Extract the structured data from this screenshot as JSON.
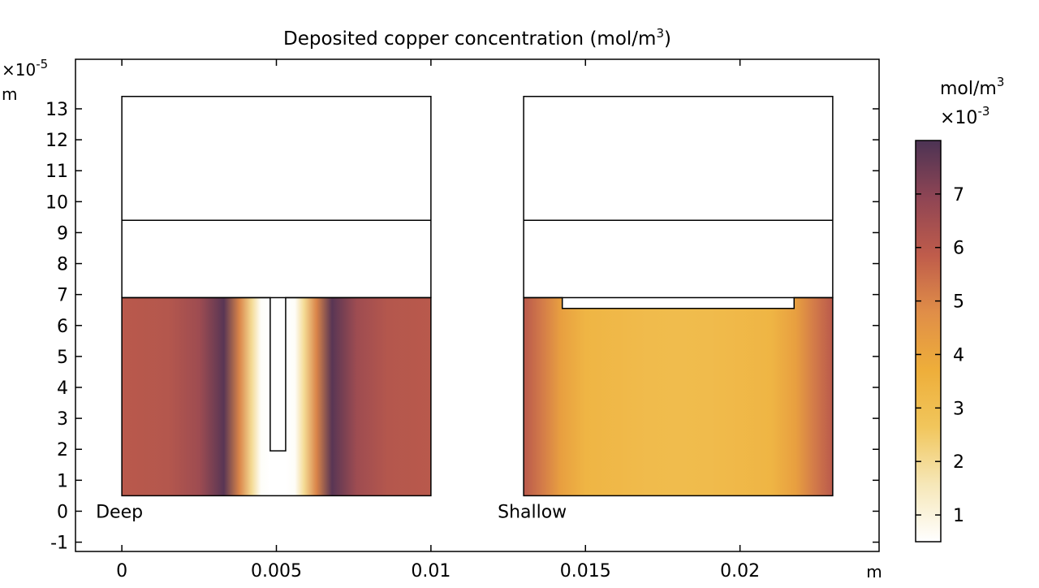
{
  "chart_data": {
    "type": "heatmap",
    "title": "Deposited copper concentration (mol/m",
    "title_sup": "3",
    "title_suffix": ")",
    "x_unit": "m",
    "y_unit": "m",
    "y_exponent_prefix": "×10",
    "y_exponent": "-5",
    "xlim": [
      -0.0015,
      0.0245
    ],
    "ylim": [
      -1.3,
      14.6
    ],
    "x_ticks": [
      {
        "value": 0,
        "label": "0"
      },
      {
        "value": 0.005,
        "label": "0.005"
      },
      {
        "value": 0.01,
        "label": "0.01"
      },
      {
        "value": 0.015,
        "label": "0.015"
      },
      {
        "value": 0.02,
        "label": "0.02"
      }
    ],
    "y_ticks": [
      {
        "value": -1,
        "label": "-1"
      },
      {
        "value": 0,
        "label": "0"
      },
      {
        "value": 1,
        "label": "1"
      },
      {
        "value": 2,
        "label": "2"
      },
      {
        "value": 3,
        "label": "3"
      },
      {
        "value": 4,
        "label": "4"
      },
      {
        "value": 5,
        "label": "5"
      },
      {
        "value": 6,
        "label": "6"
      },
      {
        "value": 7,
        "label": "7"
      },
      {
        "value": 8,
        "label": "8"
      },
      {
        "value": 9,
        "label": "9"
      },
      {
        "value": 10,
        "label": "10"
      },
      {
        "value": 11,
        "label": "11"
      },
      {
        "value": 12,
        "label": "12"
      },
      {
        "value": 13,
        "label": "13"
      }
    ],
    "domains": [
      {
        "name": "deep",
        "label": "Deep",
        "x_range": [
          0,
          0.01
        ],
        "y_bottom": 0.5,
        "interface_y": 6.9,
        "mid_line_y": 9.4,
        "top_y": 13.4,
        "feature": {
          "kind": "trench",
          "x_range": [
            0.0048,
            0.0053
          ],
          "bottom_y": 1.95
        },
        "profile": [
          {
            "x": 0,
            "v": 6.0
          },
          {
            "x": 0.0015,
            "v": 6.1
          },
          {
            "x": 0.0025,
            "v": 6.6
          },
          {
            "x": 0.0033,
            "v": 7.8
          },
          {
            "x": 0.0038,
            "v": 5.0
          },
          {
            "x": 0.0042,
            "v": 2.0
          },
          {
            "x": 0.0045,
            "v": 0.6
          },
          {
            "x": 0.0048,
            "v": 0.5
          },
          {
            "x": 0.0053,
            "v": 0.5
          },
          {
            "x": 0.0056,
            "v": 0.6
          },
          {
            "x": 0.0059,
            "v": 2.0
          },
          {
            "x": 0.0063,
            "v": 5.0
          },
          {
            "x": 0.0068,
            "v": 7.8
          },
          {
            "x": 0.0076,
            "v": 6.6
          },
          {
            "x": 0.0086,
            "v": 6.1
          },
          {
            "x": 0.01,
            "v": 6.0
          }
        ]
      },
      {
        "name": "shallow",
        "label": "Shallow",
        "x_range": [
          0.013,
          0.023
        ],
        "y_bottom": 0.5,
        "interface_y": 6.9,
        "mid_line_y": 9.4,
        "top_y": 13.4,
        "feature": {
          "kind": "recess",
          "x_range": [
            0.01425,
            0.02175
          ],
          "depth_y": 6.55
        },
        "profile": [
          {
            "x": 0.013,
            "v": 6.0
          },
          {
            "x": 0.0136,
            "v": 5.2
          },
          {
            "x": 0.0142,
            "v": 4.2
          },
          {
            "x": 0.015,
            "v": 3.4
          },
          {
            "x": 0.017,
            "v": 3.15
          },
          {
            "x": 0.018,
            "v": 3.1
          },
          {
            "x": 0.019,
            "v": 3.15
          },
          {
            "x": 0.021,
            "v": 3.4
          },
          {
            "x": 0.0218,
            "v": 4.2
          },
          {
            "x": 0.0224,
            "v": 5.2
          },
          {
            "x": 0.023,
            "v": 6.0
          }
        ]
      }
    ],
    "colorbar": {
      "unit": "mol/m",
      "unit_sup": "3",
      "exponent_prefix": "×10",
      "exponent": "-3",
      "range": [
        0.5,
        8.0
      ],
      "ticks": [
        {
          "value": 1,
          "label": "1"
        },
        {
          "value": 2,
          "label": "2"
        },
        {
          "value": 3,
          "label": "3"
        },
        {
          "value": 4,
          "label": "4"
        },
        {
          "value": 5,
          "label": "5"
        },
        {
          "value": 6,
          "label": "6"
        },
        {
          "value": 7,
          "label": "7"
        }
      ],
      "colors": [
        "#ffffff",
        "#f6e7b8",
        "#f1c65c",
        "#eeae3a",
        "#e08e48",
        "#bf5c4b",
        "#8f4554",
        "#4c3354"
      ],
      "placement": "right"
    },
    "grid": false
  }
}
